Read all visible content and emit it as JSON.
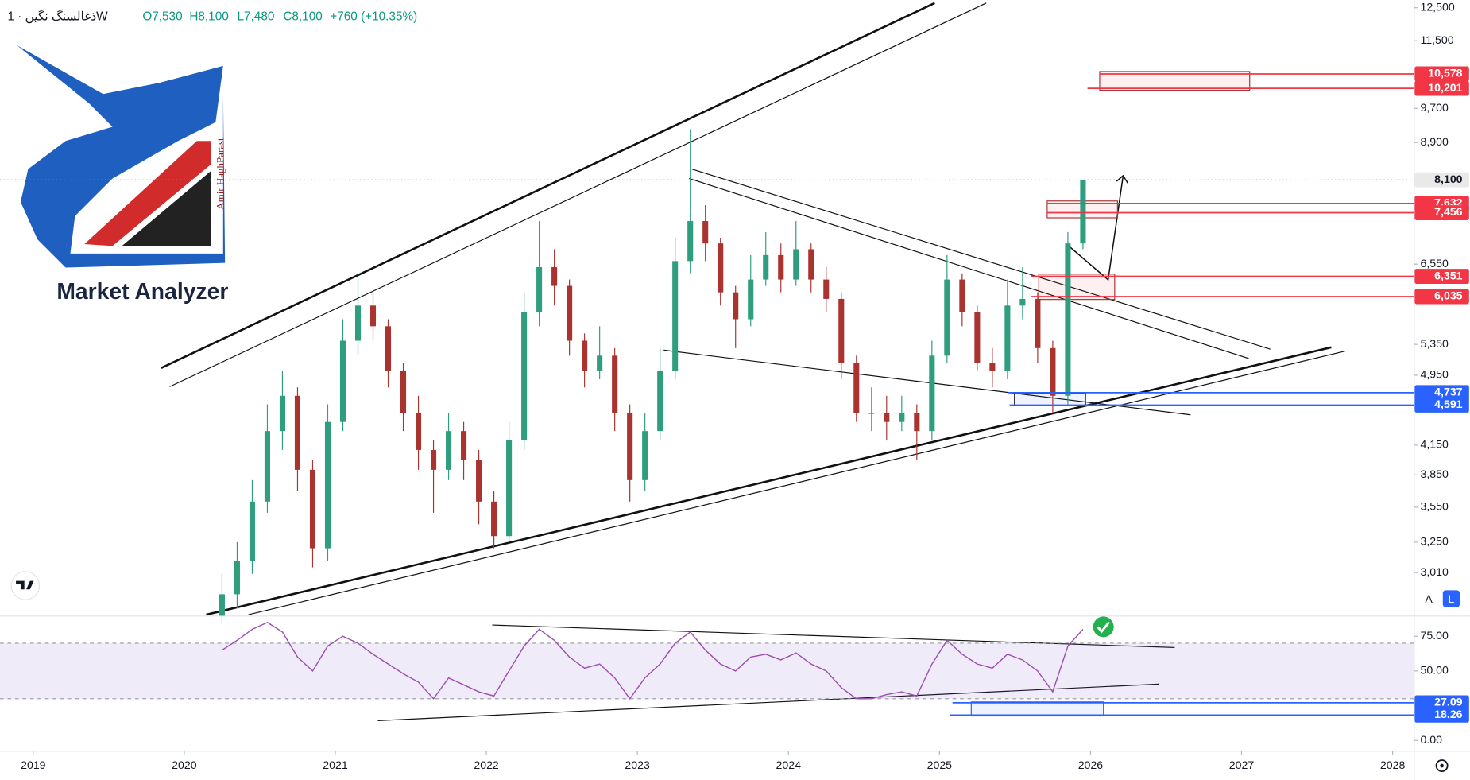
{
  "header": {
    "symbol": "ذغالسنگ نگین · 1W",
    "ohlc": [
      "O7,530",
      "H8,100",
      "L7,480",
      "C8,100",
      "+760 (+10.35%)"
    ]
  },
  "logo": {
    "brand": "Market Analyzer",
    "author": "Amir HaghParast"
  },
  "scale_buttons": [
    "A",
    "L"
  ],
  "chart_data": [
    {
      "type": "candlestick",
      "log_scale": true,
      "up_color": "#2e9e7e",
      "down_color": "#a8332f",
      "xlim": [
        2018.78,
        2028.14
      ],
      "xticks": [
        2019,
        2020,
        2021,
        2022,
        2023,
        2024,
        2025,
        2026,
        2027,
        2028
      ],
      "ylim": [
        2707,
        12738
      ],
      "yticks": [
        {
          "value": 3010,
          "label": "3,010"
        },
        {
          "value": 3250,
          "label": "3,250"
        },
        {
          "value": 3550,
          "label": "3,550"
        },
        {
          "value": 3850,
          "label": "3,850"
        },
        {
          "value": 4150,
          "label": "4,150"
        },
        {
          "value": 4950,
          "label": "4,950"
        },
        {
          "value": 5350,
          "label": "5,350"
        },
        {
          "value": 6550,
          "label": "6,550"
        },
        {
          "value": 8900,
          "label": "8,900"
        },
        {
          "value": 9700,
          "label": "9,700"
        },
        {
          "value": 11500,
          "label": "11,500"
        },
        {
          "value": 12500,
          "label": "12,500"
        }
      ],
      "x": [
        2020.25,
        2020.35,
        2020.45,
        2020.55,
        2020.65,
        2020.75,
        2020.85,
        2020.95,
        2021.05,
        2021.15,
        2021.25,
        2021.35,
        2021.45,
        2021.55,
        2021.65,
        2021.75,
        2021.85,
        2021.95,
        2022.05,
        2022.15,
        2022.25,
        2022.35,
        2022.45,
        2022.55,
        2022.65,
        2022.75,
        2022.85,
        2022.95,
        2023.05,
        2023.15,
        2023.25,
        2023.35,
        2023.45,
        2023.55,
        2023.65,
        2023.75,
        2023.85,
        2023.95,
        2024.05,
        2024.15,
        2024.25,
        2024.35,
        2024.45,
        2024.55,
        2024.65,
        2024.75,
        2024.85,
        2024.95,
        2025.05,
        2025.15,
        2025.25,
        2025.35,
        2025.45,
        2025.55,
        2025.65,
        2025.75,
        2025.85,
        2025.95
      ],
      "open": [
        2700,
        2850,
        3100,
        3600,
        4300,
        4700,
        3900,
        3200,
        4400,
        5400,
        5900,
        5600,
        5000,
        4500,
        4100,
        3900,
        4300,
        4000,
        3600,
        3300,
        4200,
        5800,
        6500,
        6200,
        5400,
        5000,
        5200,
        4500,
        3800,
        4300,
        5000,
        6600,
        7300,
        6900,
        6100,
        5700,
        6300,
        6700,
        6300,
        6800,
        6300,
        6000,
        5100,
        4500,
        4500,
        4400,
        4500,
        4300,
        5200,
        6300,
        5800,
        5100,
        5000,
        5900,
        6000,
        5300,
        4700,
        6900
      ],
      "high": [
        3000,
        3250,
        3800,
        4600,
        5000,
        4800,
        4000,
        4600,
        5700,
        6400,
        6100,
        5700,
        5100,
        4700,
        4200,
        4500,
        4400,
        4100,
        3700,
        4400,
        6100,
        7300,
        6800,
        6300,
        5500,
        5600,
        5300,
        4600,
        4500,
        5300,
        7000,
        9200,
        7600,
        7000,
        6200,
        6700,
        7100,
        6900,
        7300,
        6900,
        6500,
        6100,
        5200,
        4800,
        4700,
        4700,
        4600,
        5400,
        6700,
        6400,
        5900,
        5300,
        6300,
        6500,
        6100,
        5400,
        7100,
        8100
      ],
      "low": [
        2650,
        2750,
        3000,
        3500,
        4100,
        3700,
        3050,
        3100,
        4300,
        5200,
        5400,
        4800,
        4300,
        3900,
        3500,
        3800,
        3800,
        3400,
        3200,
        3250,
        4100,
        5600,
        5900,
        5200,
        4800,
        4900,
        4300,
        3600,
        3700,
        4200,
        4900,
        6400,
        6600,
        5900,
        5300,
        5600,
        6200,
        6100,
        6200,
        6100,
        5800,
        4900,
        4400,
        4300,
        4200,
        4300,
        4000,
        4200,
        5100,
        5600,
        5000,
        4800,
        4900,
        5700,
        5100,
        4500,
        4600,
        6800
      ],
      "close": [
        2850,
        3100,
        3600,
        4300,
        4700,
        3900,
        3200,
        4400,
        5400,
        5900,
        5600,
        5000,
        4500,
        4100,
        3900,
        4300,
        4000,
        3600,
        3300,
        4200,
        5800,
        6500,
        6200,
        5400,
        5000,
        5200,
        4500,
        3800,
        4300,
        5000,
        6600,
        7300,
        6900,
        6100,
        5700,
        6300,
        6700,
        6300,
        6800,
        6300,
        6000,
        5100,
        4500,
        4500,
        4400,
        4500,
        4300,
        5200,
        6300,
        5800,
        5100,
        5000,
        5900,
        6000,
        5300,
        4700,
        6900,
        8100
      ],
      "last_price": {
        "value": 8100,
        "label": "8,100"
      },
      "levels": [
        {
          "value": 10578,
          "label": "10,578",
          "color": "#f23645"
        },
        {
          "value": 10201,
          "label": "10,201",
          "color": "#f23645"
        },
        {
          "value": 7632,
          "label": "7,632",
          "color": "#f23645"
        },
        {
          "value": 7456,
          "label": "7,456",
          "color": "#f23645"
        },
        {
          "value": 6351,
          "label": "6,351",
          "color": "#f23645"
        },
        {
          "value": 6035,
          "label": "6,035",
          "color": "#f23645"
        },
        {
          "value": 4737,
          "label": "4,737",
          "color": "#2962ff"
        },
        {
          "value": 4591,
          "label": "4,591",
          "color": "#2962ff"
        }
      ]
    },
    {
      "type": "line",
      "color": "#9c4fb0",
      "ylim": [
        -7.4,
        88.5
      ],
      "band": [
        30,
        70
      ],
      "yticks": [
        {
          "value": 0,
          "label": "0.00"
        },
        {
          "value": 50,
          "label": "50.00"
        },
        {
          "value": 75,
          "label": "75.00"
        }
      ],
      "x": [
        2020.25,
        2020.35,
        2020.45,
        2020.55,
        2020.65,
        2020.75,
        2020.85,
        2020.95,
        2021.05,
        2021.15,
        2021.25,
        2021.35,
        2021.45,
        2021.55,
        2021.65,
        2021.75,
        2021.85,
        2021.95,
        2022.05,
        2022.15,
        2022.25,
        2022.35,
        2022.45,
        2022.55,
        2022.65,
        2022.75,
        2022.85,
        2022.95,
        2023.05,
        2023.15,
        2023.25,
        2023.35,
        2023.45,
        2023.55,
        2023.65,
        2023.75,
        2023.85,
        2023.95,
        2024.05,
        2024.15,
        2024.25,
        2024.35,
        2024.45,
        2024.55,
        2024.65,
        2024.75,
        2024.85,
        2024.95,
        2025.05,
        2025.15,
        2025.25,
        2025.35,
        2025.45,
        2025.55,
        2025.65,
        2025.75,
        2025.85,
        2025.95
      ],
      "values": [
        65,
        72,
        80,
        85,
        78,
        60,
        50,
        68,
        75,
        70,
        62,
        55,
        48,
        42,
        30,
        45,
        40,
        35,
        32,
        50,
        68,
        80,
        72,
        60,
        52,
        55,
        45,
        30,
        45,
        55,
        70,
        78,
        65,
        55,
        50,
        60,
        62,
        58,
        63,
        55,
        50,
        38,
        30,
        30,
        33,
        35,
        32,
        55,
        72,
        62,
        55,
        52,
        62,
        58,
        50,
        35,
        68,
        80
      ],
      "levels": [
        {
          "value": 27.09,
          "label": "27.09",
          "color": "#2962ff"
        },
        {
          "value": 18.26,
          "label": "18.26",
          "color": "#2962ff"
        }
      ]
    }
  ]
}
